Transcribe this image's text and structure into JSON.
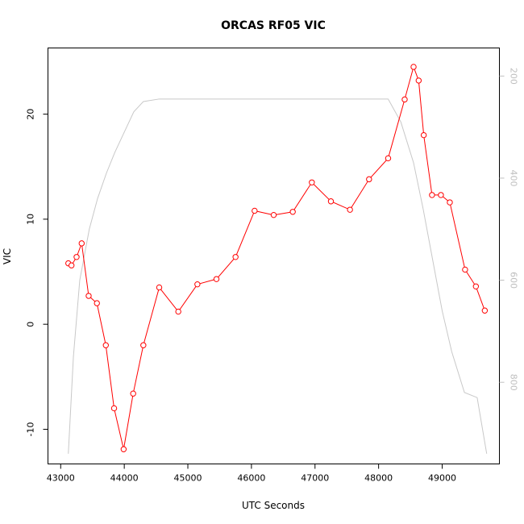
{
  "chart_data": {
    "type": "line",
    "title": "ORCAS RF05 VIC",
    "xlabel": "UTC Seconds",
    "ylabel": "VIC",
    "y2label": "",
    "xlim": [
      42800,
      49900
    ],
    "ylim": [
      -13.3,
      26.3
    ],
    "y2lim": [
      960,
      145
    ],
    "y2_reversed": true,
    "x_ticks": [
      43000,
      44000,
      45000,
      46000,
      47000,
      48000,
      49000
    ],
    "y_ticks": [
      -10,
      0,
      10,
      20
    ],
    "y2_ticks": [
      200,
      400,
      600,
      800
    ],
    "grid": false,
    "legend": "none",
    "colors": {
      "vic": "#ff0000",
      "pressure": "#c8c8c8",
      "axis": "#000000",
      "y2_axis": "#bebebe"
    },
    "series": [
      {
        "axis": "left",
        "style": "line-with-circle-markers",
        "x": [
          43120,
          43170,
          43250,
          43330,
          43440,
          43570,
          43710,
          43840,
          43990,
          44140,
          44300,
          44550,
          44850,
          45150,
          45450,
          45750,
          46050,
          46350,
          46650,
          46950,
          47250,
          47550,
          47850,
          48150,
          48410,
          48550,
          48630,
          48710,
          48840,
          48980,
          49120,
          49360,
          49530,
          49670
        ],
        "values": [
          5.8,
          5.6,
          6.4,
          7.7,
          2.7,
          2.0,
          -2.0,
          -8.0,
          -11.9,
          -6.6,
          -2.0,
          3.5,
          1.2,
          3.8,
          4.3,
          6.4,
          10.8,
          10.4,
          10.7,
          13.5,
          11.7,
          10.9,
          13.8,
          15.8,
          21.4,
          24.5,
          23.2,
          18.0,
          12.3,
          12.3,
          11.6,
          5.2,
          3.6,
          1.3
        ]
      },
      {
        "axis": "right",
        "style": "line",
        "x": [
          43120,
          43200,
          43300,
          43450,
          43580,
          43720,
          43850,
          44000,
          44150,
          44300,
          44550,
          44900,
          45500,
          46500,
          47500,
          48150,
          48350,
          48550,
          48700,
          48850,
          49000,
          49150,
          49350,
          49550,
          49700
        ],
        "values": [
          940,
          750,
          600,
          500,
          440,
          390,
          350,
          310,
          270,
          250,
          245,
          245,
          245,
          245,
          245,
          245,
          290,
          370,
          460,
          560,
          660,
          740,
          820,
          830,
          940
        ]
      }
    ]
  }
}
